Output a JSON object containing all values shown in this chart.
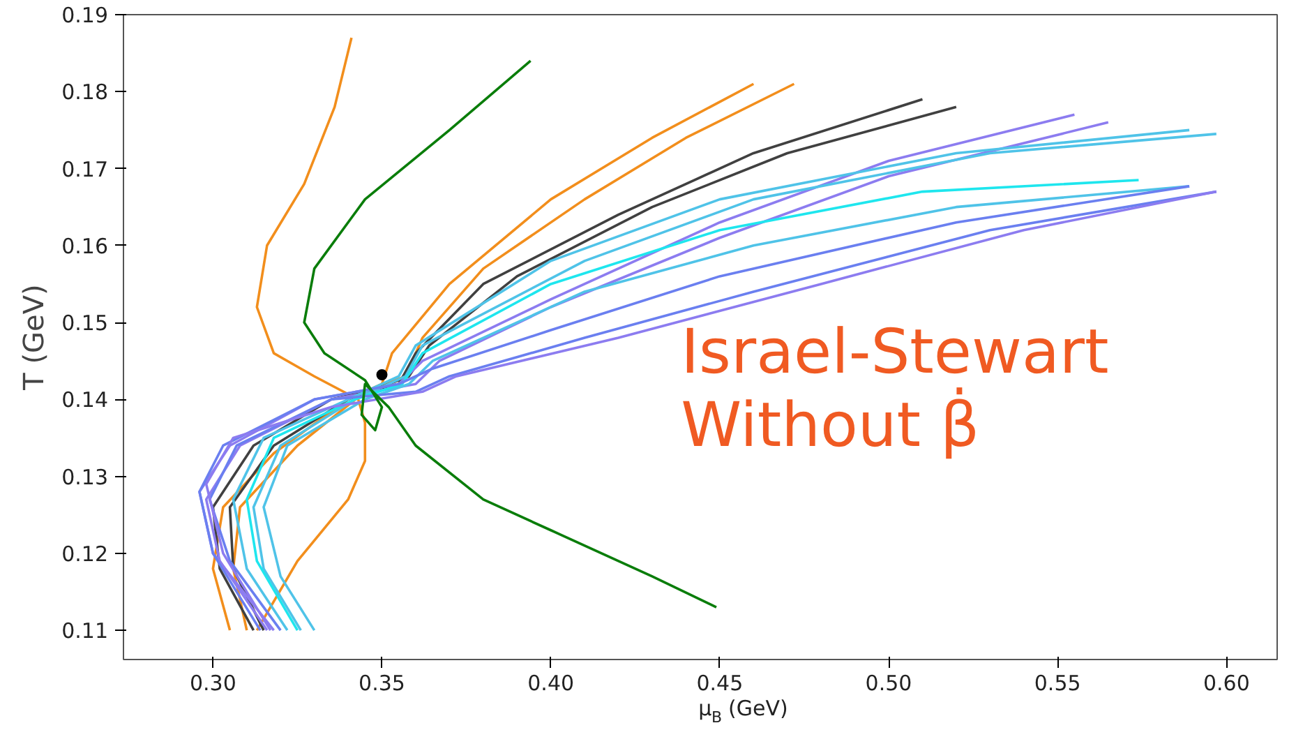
{
  "chart_data": {
    "type": "line",
    "xlabel": "μ$_{B}$ (GeV)",
    "ylabel": "T (GeV)",
    "xlim": [
      0.2735,
      0.615
    ],
    "ylim": [
      0.1062,
      0.19
    ],
    "xticks": [
      {
        "value": 0.3,
        "label": "0.30"
      },
      0.35,
      {
        "value": 0.4,
        "label": "0.40"
      },
      0.45,
      {
        "value": 0.5,
        "label": "0.50"
      },
      0.55,
      {
        "value": 0.6,
        "label": "0.60"
      }
    ],
    "yticks": [
      0.11,
      0.12,
      0.13,
      0.14,
      0.15,
      0.16,
      0.17,
      0.18,
      0.19
    ],
    "grid": false,
    "annotations": [
      "Israel-Stewart",
      "Without β̇"
    ],
    "series": [
      {
        "color": "#f28e1c",
        "x": [
          0.305,
          0.3,
          0.303,
          0.318,
          0.34,
          0.35,
          0.353,
          0.37,
          0.4,
          0.43,
          0.46
        ],
        "values": [
          0.11,
          0.118,
          0.126,
          0.133,
          0.14,
          0.142,
          0.146,
          0.155,
          0.166,
          0.174,
          0.181
        ]
      },
      {
        "color": "#f28e1c",
        "x": [
          0.31,
          0.306,
          0.308,
          0.325,
          0.345,
          0.357,
          0.362,
          0.38,
          0.41,
          0.44,
          0.472
        ],
        "values": [
          0.11,
          0.118,
          0.126,
          0.134,
          0.141,
          0.143,
          0.148,
          0.157,
          0.166,
          0.174,
          0.181
        ]
      },
      {
        "color": "#f28e1c",
        "x": [
          0.313,
          0.325,
          0.34,
          0.345,
          0.345,
          0.343,
          0.33,
          0.318,
          0.313,
          0.316,
          0.327,
          0.336,
          0.341
        ],
        "values": [
          0.11,
          0.119,
          0.127,
          0.132,
          0.137,
          0.14,
          0.143,
          0.146,
          0.152,
          0.16,
          0.168,
          0.178,
          0.187
        ]
      },
      {
        "color": "#404040",
        "x": [
          0.312,
          0.302,
          0.3,
          0.312,
          0.335,
          0.355,
          0.36,
          0.38,
          0.42,
          0.46,
          0.51
        ],
        "values": [
          0.11,
          0.118,
          0.126,
          0.134,
          0.14,
          0.142,
          0.146,
          0.155,
          0.164,
          0.172,
          0.179
        ]
      },
      {
        "color": "#404040",
        "x": [
          0.315,
          0.306,
          0.305,
          0.318,
          0.34,
          0.358,
          0.364,
          0.39,
          0.43,
          0.47,
          0.52
        ],
        "values": [
          0.11,
          0.118,
          0.126,
          0.134,
          0.14,
          0.143,
          0.147,
          0.156,
          0.165,
          0.172,
          0.178
        ]
      },
      {
        "color": "#8c7cf0",
        "x": [
          0.318,
          0.3,
          0.296,
          0.305,
          0.33,
          0.355,
          0.362,
          0.4,
          0.45,
          0.5,
          0.555
        ],
        "values": [
          0.11,
          0.12,
          0.128,
          0.134,
          0.14,
          0.142,
          0.145,
          0.153,
          0.163,
          0.171,
          0.177
        ]
      },
      {
        "color": "#8c7cf0",
        "x": [
          0.316,
          0.302,
          0.298,
          0.308,
          0.335,
          0.36,
          0.367,
          0.4,
          0.45,
          0.5,
          0.565
        ],
        "values": [
          0.11,
          0.119,
          0.127,
          0.134,
          0.14,
          0.142,
          0.145,
          0.152,
          0.161,
          0.169,
          0.176
        ]
      },
      {
        "color": "#4fc3e8",
        "x": [
          0.322,
          0.31,
          0.306,
          0.315,
          0.34,
          0.355,
          0.36,
          0.4,
          0.45,
          0.52,
          0.589
        ],
        "values": [
          0.11,
          0.118,
          0.127,
          0.135,
          0.14,
          0.143,
          0.147,
          0.158,
          0.166,
          0.172,
          0.175
        ]
      },
      {
        "color": "#4fc3e8",
        "x": [
          0.326,
          0.315,
          0.312,
          0.32,
          0.342,
          0.357,
          0.362,
          0.41,
          0.46,
          0.53,
          0.597
        ],
        "values": [
          0.11,
          0.118,
          0.126,
          0.134,
          0.14,
          0.143,
          0.147,
          0.158,
          0.166,
          0.172,
          0.1745
        ]
      },
      {
        "color": "#1ee6ee",
        "x": [
          0.325,
          0.313,
          0.31,
          0.318,
          0.342,
          0.356,
          0.362,
          0.4,
          0.45,
          0.51,
          0.574
        ],
        "values": [
          0.11,
          0.119,
          0.127,
          0.135,
          0.14,
          0.142,
          0.146,
          0.155,
          0.162,
          0.167,
          0.1685
        ]
      },
      {
        "color": "#4fc3e8",
        "x": [
          0.33,
          0.32,
          0.315,
          0.322,
          0.345,
          0.358,
          0.365,
          0.41,
          0.46,
          0.52,
          0.589
        ],
        "values": [
          0.11,
          0.117,
          0.126,
          0.134,
          0.14,
          0.142,
          0.145,
          0.154,
          0.16,
          0.165,
          0.1677
        ]
      },
      {
        "color": "#6a7ff0",
        "x": [
          0.314,
          0.3,
          0.296,
          0.303,
          0.33,
          0.355,
          0.365,
          0.4,
          0.45,
          0.52,
          0.589
        ],
        "values": [
          0.11,
          0.12,
          0.128,
          0.134,
          0.14,
          0.142,
          0.144,
          0.149,
          0.156,
          0.163,
          0.1677
        ]
      },
      {
        "color": "#6a7ff0",
        "x": [
          0.32,
          0.305,
          0.299,
          0.307,
          0.335,
          0.36,
          0.37,
          0.41,
          0.46,
          0.53,
          0.597
        ],
        "values": [
          0.11,
          0.119,
          0.127,
          0.134,
          0.14,
          0.141,
          0.143,
          0.148,
          0.154,
          0.162,
          0.167
        ]
      },
      {
        "color": "#8c7cf0",
        "x": [
          0.317,
          0.303,
          0.298,
          0.306,
          0.335,
          0.362,
          0.372,
          0.42,
          0.48,
          0.54,
          0.597
        ],
        "values": [
          0.11,
          0.12,
          0.129,
          0.135,
          0.139,
          0.141,
          0.143,
          0.148,
          0.155,
          0.162,
          0.167
        ]
      },
      {
        "color": "#0a7d0a",
        "x": [
          0.394,
          0.37,
          0.345,
          0.33,
          0.327,
          0.333,
          0.345,
          0.35,
          0.348,
          0.344,
          0.345,
          0.352,
          0.36,
          0.38,
          0.4,
          0.43,
          0.449
        ],
        "values": [
          0.184,
          0.175,
          0.166,
          0.157,
          0.15,
          0.146,
          0.1425,
          0.139,
          0.136,
          0.138,
          0.142,
          0.139,
          0.134,
          0.127,
          0.123,
          0.117,
          0.113
        ]
      },
      {
        "type": "scatter",
        "color": "#000000",
        "x": [
          0.35
        ],
        "values": [
          0.1432
        ]
      }
    ]
  }
}
